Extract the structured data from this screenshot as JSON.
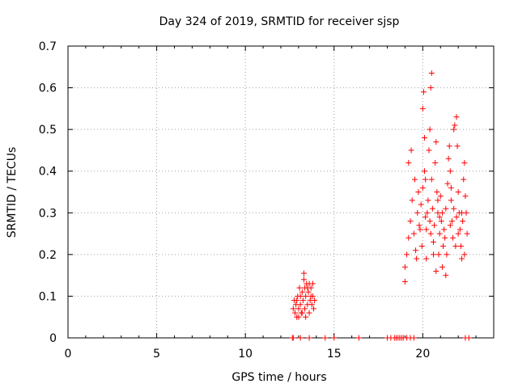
{
  "chart_data": {
    "type": "scatter",
    "title": "Day 324 of 2019, SRMTID for receiver sjsp",
    "xlabel": "GPS time / hours",
    "ylabel": "SRMTID / TECUs",
    "xlim": [
      0,
      24
    ],
    "ylim": [
      0,
      0.7
    ],
    "xticks": [
      0,
      5,
      10,
      15,
      20
    ],
    "yticks": [
      0,
      0.1,
      0.2,
      0.3,
      0.4,
      0.5,
      0.6,
      0.7
    ],
    "xtick_labels": [
      "0",
      "5",
      "10",
      "15",
      "20"
    ],
    "ytick_labels": [
      "0",
      "0.1",
      "0.2",
      "0.3",
      "0.4",
      "0.5",
      "0.6",
      "0.7"
    ],
    "grid": true,
    "marker": "+",
    "color": "#ff0000",
    "series": [
      {
        "name": "SRMTID",
        "points": [
          [
            12.65,
            0.0
          ],
          [
            12.7,
            0.0
          ],
          [
            13.1,
            0.0
          ],
          [
            13.6,
            0.0
          ],
          [
            14.5,
            0.0
          ],
          [
            15.0,
            0.0
          ],
          [
            16.4,
            0.0
          ],
          [
            18.0,
            0.0
          ],
          [
            18.2,
            0.0
          ],
          [
            18.4,
            0.0
          ],
          [
            18.5,
            0.0
          ],
          [
            18.6,
            0.0
          ],
          [
            18.7,
            0.0
          ],
          [
            18.8,
            0.0
          ],
          [
            18.9,
            0.0
          ],
          [
            19.1,
            0.0
          ],
          [
            19.3,
            0.0
          ],
          [
            19.5,
            0.0
          ],
          [
            22.4,
            0.0
          ],
          [
            22.6,
            0.0
          ],
          [
            12.7,
            0.07
          ],
          [
            12.75,
            0.09
          ],
          [
            12.8,
            0.06
          ],
          [
            12.85,
            0.08
          ],
          [
            12.9,
            0.05
          ],
          [
            12.95,
            0.1
          ],
          [
            13.0,
            0.07
          ],
          [
            13.05,
            0.12
          ],
          [
            13.1,
            0.08
          ],
          [
            13.15,
            0.06
          ],
          [
            13.2,
            0.11
          ],
          [
            13.25,
            0.09
          ],
          [
            13.3,
            0.14
          ],
          [
            13.35,
            0.07
          ],
          [
            13.4,
            0.1
          ],
          [
            13.45,
            0.13
          ],
          [
            13.5,
            0.08
          ],
          [
            13.55,
            0.11
          ],
          [
            13.6,
            0.06
          ],
          [
            13.65,
            0.09
          ],
          [
            13.7,
            0.12
          ],
          [
            13.75,
            0.08
          ],
          [
            13.8,
            0.1
          ],
          [
            13.85,
            0.07
          ],
          [
            13.9,
            0.09
          ],
          [
            13.0,
            0.05
          ],
          [
            13.2,
            0.06
          ],
          [
            13.4,
            0.05
          ],
          [
            13.6,
            0.13
          ],
          [
            13.3,
            0.155
          ],
          [
            12.9,
            0.09
          ],
          [
            13.1,
            0.1
          ],
          [
            13.5,
            0.12
          ],
          [
            13.7,
            0.1
          ],
          [
            13.8,
            0.13
          ],
          [
            13.35,
            0.12
          ],
          [
            19.0,
            0.135
          ],
          [
            19.0,
            0.17
          ],
          [
            19.1,
            0.2
          ],
          [
            19.2,
            0.24
          ],
          [
            19.3,
            0.28
          ],
          [
            19.4,
            0.33
          ],
          [
            19.5,
            0.25
          ],
          [
            19.6,
            0.21
          ],
          [
            19.7,
            0.3
          ],
          [
            19.8,
            0.27
          ],
          [
            19.9,
            0.32
          ],
          [
            19.95,
            0.22
          ],
          [
            20.0,
            0.36
          ],
          [
            20.0,
            0.55
          ],
          [
            20.05,
            0.59
          ],
          [
            20.1,
            0.48
          ],
          [
            20.1,
            0.4
          ],
          [
            20.15,
            0.29
          ],
          [
            20.2,
            0.26
          ],
          [
            20.2,
            0.19
          ],
          [
            20.3,
            0.33
          ],
          [
            20.35,
            0.45
          ],
          [
            20.4,
            0.5
          ],
          [
            20.45,
            0.6
          ],
          [
            20.5,
            0.635
          ],
          [
            20.5,
            0.38
          ],
          [
            20.55,
            0.31
          ],
          [
            20.6,
            0.23
          ],
          [
            20.65,
            0.27
          ],
          [
            20.7,
            0.42
          ],
          [
            20.75,
            0.47
          ],
          [
            20.8,
            0.35
          ],
          [
            20.85,
            0.3
          ],
          [
            20.9,
            0.2
          ],
          [
            20.95,
            0.25
          ],
          [
            21.0,
            0.34
          ],
          [
            21.05,
            0.28
          ],
          [
            21.1,
            0.17
          ],
          [
            21.15,
            0.22
          ],
          [
            21.2,
            0.26
          ],
          [
            21.3,
            0.31
          ],
          [
            21.4,
            0.37
          ],
          [
            21.45,
            0.43
          ],
          [
            21.5,
            0.46
          ],
          [
            21.55,
            0.4
          ],
          [
            21.6,
            0.33
          ],
          [
            21.65,
            0.28
          ],
          [
            21.7,
            0.24
          ],
          [
            21.75,
            0.5
          ],
          [
            21.8,
            0.51
          ],
          [
            21.9,
            0.53
          ],
          [
            21.95,
            0.46
          ],
          [
            22.0,
            0.35
          ],
          [
            22.05,
            0.3
          ],
          [
            22.1,
            0.26
          ],
          [
            22.15,
            0.22
          ],
          [
            22.2,
            0.19
          ],
          [
            22.25,
            0.28
          ],
          [
            22.3,
            0.38
          ],
          [
            22.35,
            0.42
          ],
          [
            22.4,
            0.34
          ],
          [
            22.45,
            0.3
          ],
          [
            22.5,
            0.25
          ],
          [
            19.2,
            0.42
          ],
          [
            19.35,
            0.45
          ],
          [
            19.55,
            0.38
          ],
          [
            19.75,
            0.35
          ],
          [
            19.85,
            0.26
          ],
          [
            20.25,
            0.3
          ],
          [
            20.4,
            0.28
          ],
          [
            20.6,
            0.2
          ],
          [
            20.75,
            0.16
          ],
          [
            20.95,
            0.29
          ],
          [
            21.1,
            0.3
          ],
          [
            21.25,
            0.24
          ],
          [
            21.35,
            0.2
          ],
          [
            21.55,
            0.27
          ],
          [
            21.75,
            0.31
          ],
          [
            21.85,
            0.22
          ],
          [
            22.0,
            0.25
          ],
          [
            22.2,
            0.3
          ],
          [
            22.35,
            0.2
          ],
          [
            21.3,
            0.15
          ],
          [
            20.85,
            0.33
          ],
          [
            20.15,
            0.38
          ],
          [
            19.65,
            0.19
          ],
          [
            20.45,
            0.25
          ],
          [
            21.6,
            0.36
          ],
          [
            21.9,
            0.29
          ]
        ]
      }
    ]
  }
}
